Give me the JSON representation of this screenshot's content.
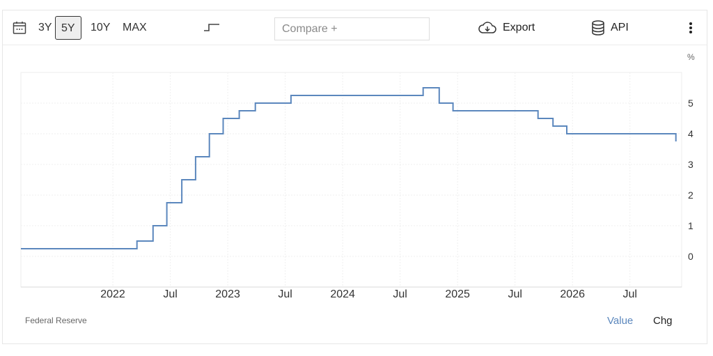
{
  "toolbar": {
    "ranges": [
      "3Y",
      "5Y",
      "10Y",
      "MAX"
    ],
    "active_range": "5Y",
    "compare_placeholder": "Compare +",
    "export_label": "Export",
    "api_label": "API",
    "icons": [
      "calendar-icon",
      "step-chart-icon",
      "cloud-download-icon",
      "database-icon",
      "kebab-menu-icon"
    ]
  },
  "footer": {
    "source": "Federal Reserve",
    "tabs": [
      "Value",
      "Chg"
    ],
    "active_tab": "Value"
  },
  "colors": {
    "series": "#5b87bd",
    "active_tab": "#5b87bd"
  },
  "chart_data": {
    "type": "line",
    "step": true,
    "title": "",
    "xlabel": "",
    "ylabel": "",
    "unit_label": "%",
    "xlim": [
      2021.2,
      2026.95
    ],
    "ylim": [
      -1,
      6
    ],
    "y_ticks": [
      0,
      1,
      2,
      3,
      4,
      5
    ],
    "x_ticks": [
      {
        "x": 2022.0,
        "label": "2022"
      },
      {
        "x": 2022.5,
        "label": "Jul"
      },
      {
        "x": 2023.0,
        "label": "2023"
      },
      {
        "x": 2023.5,
        "label": "Jul"
      },
      {
        "x": 2024.0,
        "label": "2024"
      },
      {
        "x": 2024.5,
        "label": "Jul"
      },
      {
        "x": 2025.0,
        "label": "2025"
      },
      {
        "x": 2025.5,
        "label": "Jul"
      },
      {
        "x": 2026.0,
        "label": "2026"
      },
      {
        "x": 2026.5,
        "label": "Jul"
      }
    ],
    "grid": true,
    "series": [
      {
        "x": [
          2021.2,
          2022.21,
          2022.35,
          2022.47,
          2022.6,
          2022.72,
          2022.84,
          2022.96,
          2023.1,
          2023.24,
          2023.55,
          2024.7,
          2024.84,
          2024.96,
          2025.7,
          2025.83,
          2025.95,
          2026.9
        ],
        "y": [
          0.25,
          0.5,
          1.0,
          1.75,
          2.5,
          3.25,
          4.0,
          4.5,
          4.75,
          5.0,
          5.25,
          5.5,
          5.0,
          4.75,
          4.5,
          4.25,
          4.0,
          3.75
        ]
      }
    ]
  }
}
